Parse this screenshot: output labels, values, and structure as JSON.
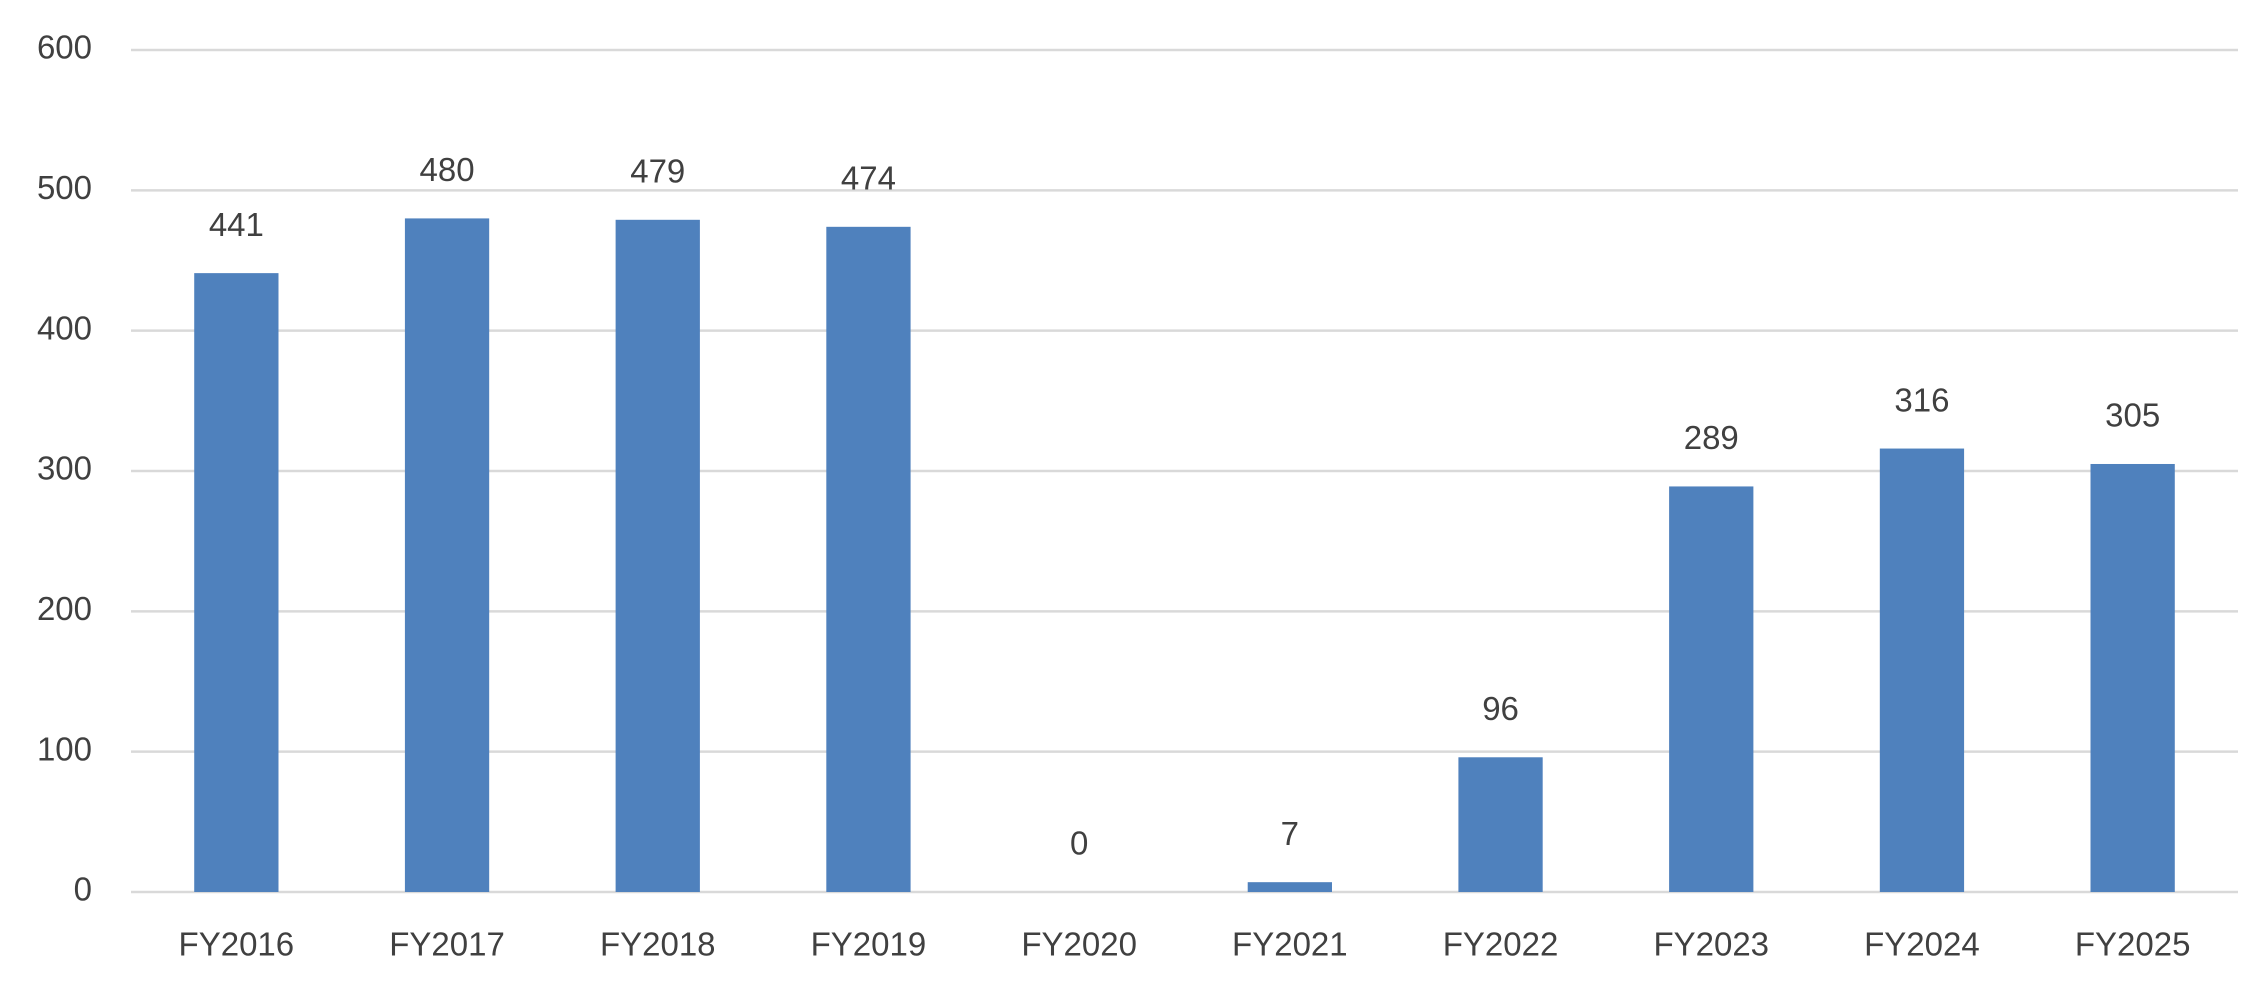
{
  "chart_data": {
    "type": "bar",
    "categories": [
      "FY2016",
      "FY2017",
      "FY2018",
      "FY2019",
      "FY2020",
      "FY2021",
      "FY2022",
      "FY2023",
      "FY2024",
      "FY2025"
    ],
    "values": [
      441,
      480,
      479,
      474,
      0,
      7,
      96,
      289,
      316,
      305
    ],
    "color": "#4f81bd",
    "ylim": [
      0,
      600
    ],
    "yticks": [
      0,
      100,
      200,
      300,
      400,
      500,
      600
    ],
    "grid": true
  }
}
